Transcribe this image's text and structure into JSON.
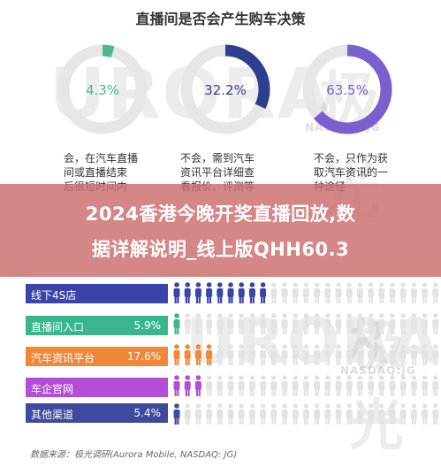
{
  "title": "直播间是否会产生购车决策",
  "donuts": [
    {
      "value": 4.3,
      "label": "4.3%",
      "color": "#4cb88c",
      "desc": [
        "会，在汽车直播",
        "间或直播结束",
        "后很短时间内"
      ]
    },
    {
      "value": 32.2,
      "label": "32.2%",
      "color": "#2f3f8f",
      "desc": [
        "不会，需到汽车",
        "资讯平台详细查",
        "看报价、评测等"
      ]
    },
    {
      "value": 63.5,
      "label": "63.5%",
      "color": "#7b5fcf",
      "desc": [
        "不会，只作为获",
        "取汽车资讯的一",
        "种途径"
      ]
    }
  ],
  "banner": {
    "line1": "2024香港今晚开奖直播回放,数",
    "line2": "据详解说明_线上版QHH60.3"
  },
  "watermark": {
    "brand": "URORA",
    "cn": "极光",
    "ticker": "NASDAQ:JG"
  },
  "chart_data": [
    {
      "type": "pie",
      "title": "直播间是否会产生购车决策",
      "categories": [
        "会，在汽车直播间或直播结束后很短时间内",
        "不会，需到汽车资讯平台详细查看报价、评测等",
        "不会，只作为获取汽车资讯的一种途径"
      ],
      "values": [
        4.3,
        32.2,
        63.5
      ]
    },
    {
      "type": "bar",
      "categories": [
        "线下4S店",
        "直播间入口",
        "汽车资讯平台",
        "车企官网",
        "其他渠道"
      ],
      "values": [
        null,
        5.9,
        17.6,
        null,
        5.4
      ],
      "value_labels": [
        "",
        "5.9%",
        "17.6%",
        "",
        "5.4%"
      ],
      "colors": [
        "#3b44a8",
        "#3bb58f",
        "#f0883a",
        "#b24fd6",
        "#3d4a9e"
      ]
    }
  ],
  "bars": [
    {
      "label": "线下4S店",
      "value": "",
      "color": "#3b44a8",
      "colored": 9
    },
    {
      "label": "直播间入口",
      "value": "5.9%",
      "color": "#3bb58f",
      "colored": 1
    },
    {
      "label": "汽车资讯平台",
      "value": "17.6%",
      "color": "#f0883a",
      "colored": 4
    },
    {
      "label": "车企官网",
      "value": "",
      "color": "#b24fd6",
      "colored": 3
    },
    {
      "label": "其他渠道",
      "value": "5.4%",
      "color": "#3d4a9e",
      "colored": 1
    }
  ],
  "source": "数据来源：极光调研(Aurora Mobile, NASDAQ: JG)"
}
